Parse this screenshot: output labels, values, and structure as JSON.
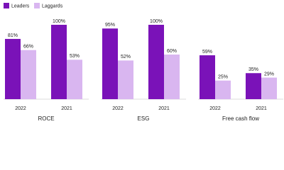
{
  "chart_data": {
    "type": "bar",
    "legend_position": "top-left",
    "groups": [
      "ROCE",
      "ESG",
      "Free cash flow"
    ],
    "categories": [
      "2022",
      "2021",
      "2022",
      "2021",
      "2022",
      "2021"
    ],
    "series": [
      {
        "name": "Leaders",
        "color": "#7a12b8",
        "values": [
          81,
          100,
          95,
          100,
          59,
          35
        ],
        "value_labels": [
          "81%",
          "100%",
          "95%",
          "100%",
          "59%",
          "35%"
        ]
      },
      {
        "name": "Laggards",
        "color": "#d9b6f0",
        "values": [
          66,
          53,
          52,
          60,
          25,
          29
        ],
        "value_labels": [
          "66%",
          "53%",
          "52%",
          "60%",
          "25%",
          "29%"
        ]
      }
    ],
    "ylim": [
      0,
      100
    ]
  }
}
